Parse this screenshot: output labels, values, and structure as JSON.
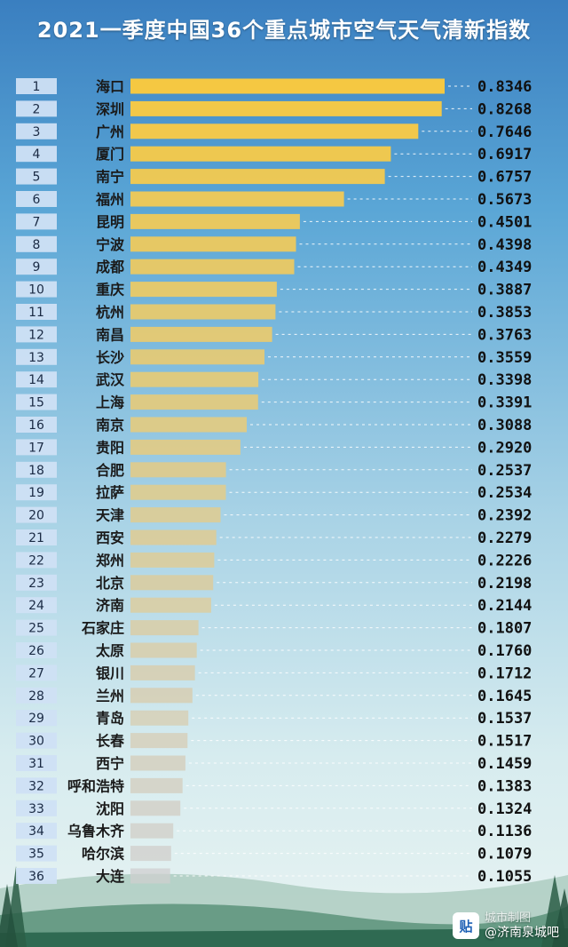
{
  "watermark": {
    "logo_text": "贴",
    "credit": "城市制图",
    "forum": "@济南泉城吧"
  },
  "chart_data": {
    "type": "bar",
    "orientation": "horizontal",
    "title": "2021一季度中国36个重点城市空气天气清新指数",
    "xlim": [
      0,
      0.8346
    ],
    "grid": false,
    "legend": "none",
    "colors": {
      "top": "#f5c842",
      "bottom": "#cfcfcf"
    },
    "ranks": [
      "1",
      "2",
      "3",
      "4",
      "5",
      "6",
      "7",
      "8",
      "9",
      "10",
      "11",
      "12",
      "13",
      "14",
      "15",
      "16",
      "17",
      "18",
      "19",
      "20",
      "21",
      "22",
      "23",
      "24",
      "25",
      "26",
      "27",
      "28",
      "29",
      "30",
      "31",
      "32",
      "33",
      "34",
      "35",
      "36"
    ],
    "categories": [
      "海口",
      "深圳",
      "广州",
      "厦门",
      "南宁",
      "福州",
      "昆明",
      "宁波",
      "成都",
      "重庆",
      "杭州",
      "南昌",
      "长沙",
      "武汉",
      "上海",
      "南京",
      "贵阳",
      "合肥",
      "拉萨",
      "天津",
      "西安",
      "郑州",
      "北京",
      "济南",
      "石家庄",
      "太原",
      "银川",
      "兰州",
      "青岛",
      "长春",
      "西宁",
      "呼和浩特",
      "沈阳",
      "乌鲁木齐",
      "哈尔滨",
      "大连"
    ],
    "values": [
      0.8346,
      0.8268,
      0.7646,
      0.6917,
      0.6757,
      0.5673,
      0.4501,
      0.4398,
      0.4349,
      0.3887,
      0.3853,
      0.3763,
      0.3559,
      0.3398,
      0.3391,
      0.3088,
      0.292,
      0.2537,
      0.2534,
      0.2392,
      0.2279,
      0.2226,
      0.2198,
      0.2144,
      0.1807,
      0.176,
      0.1712,
      0.1645,
      0.1537,
      0.1517,
      0.1459,
      0.1383,
      0.1324,
      0.1136,
      0.1079,
      0.1055
    ],
    "value_labels": [
      "0.8346",
      "0.8268",
      "0.7646",
      "0.6917",
      "0.6757",
      "0.5673",
      "0.4501",
      "0.4398",
      "0.4349",
      "0.3887",
      "0.3853",
      "0.3763",
      "0.3559",
      "0.3398",
      "0.3391",
      "0.3088",
      "0.2920",
      "0.2537",
      "0.2534",
      "0.2392",
      "0.2279",
      "0.2226",
      "0.2198",
      "0.2144",
      "0.1807",
      "0.1760",
      "0.1712",
      "0.1645",
      "0.1537",
      "0.1517",
      "0.1459",
      "0.1383",
      "0.1324",
      "0.1136",
      "0.1079",
      "0.1055"
    ]
  }
}
